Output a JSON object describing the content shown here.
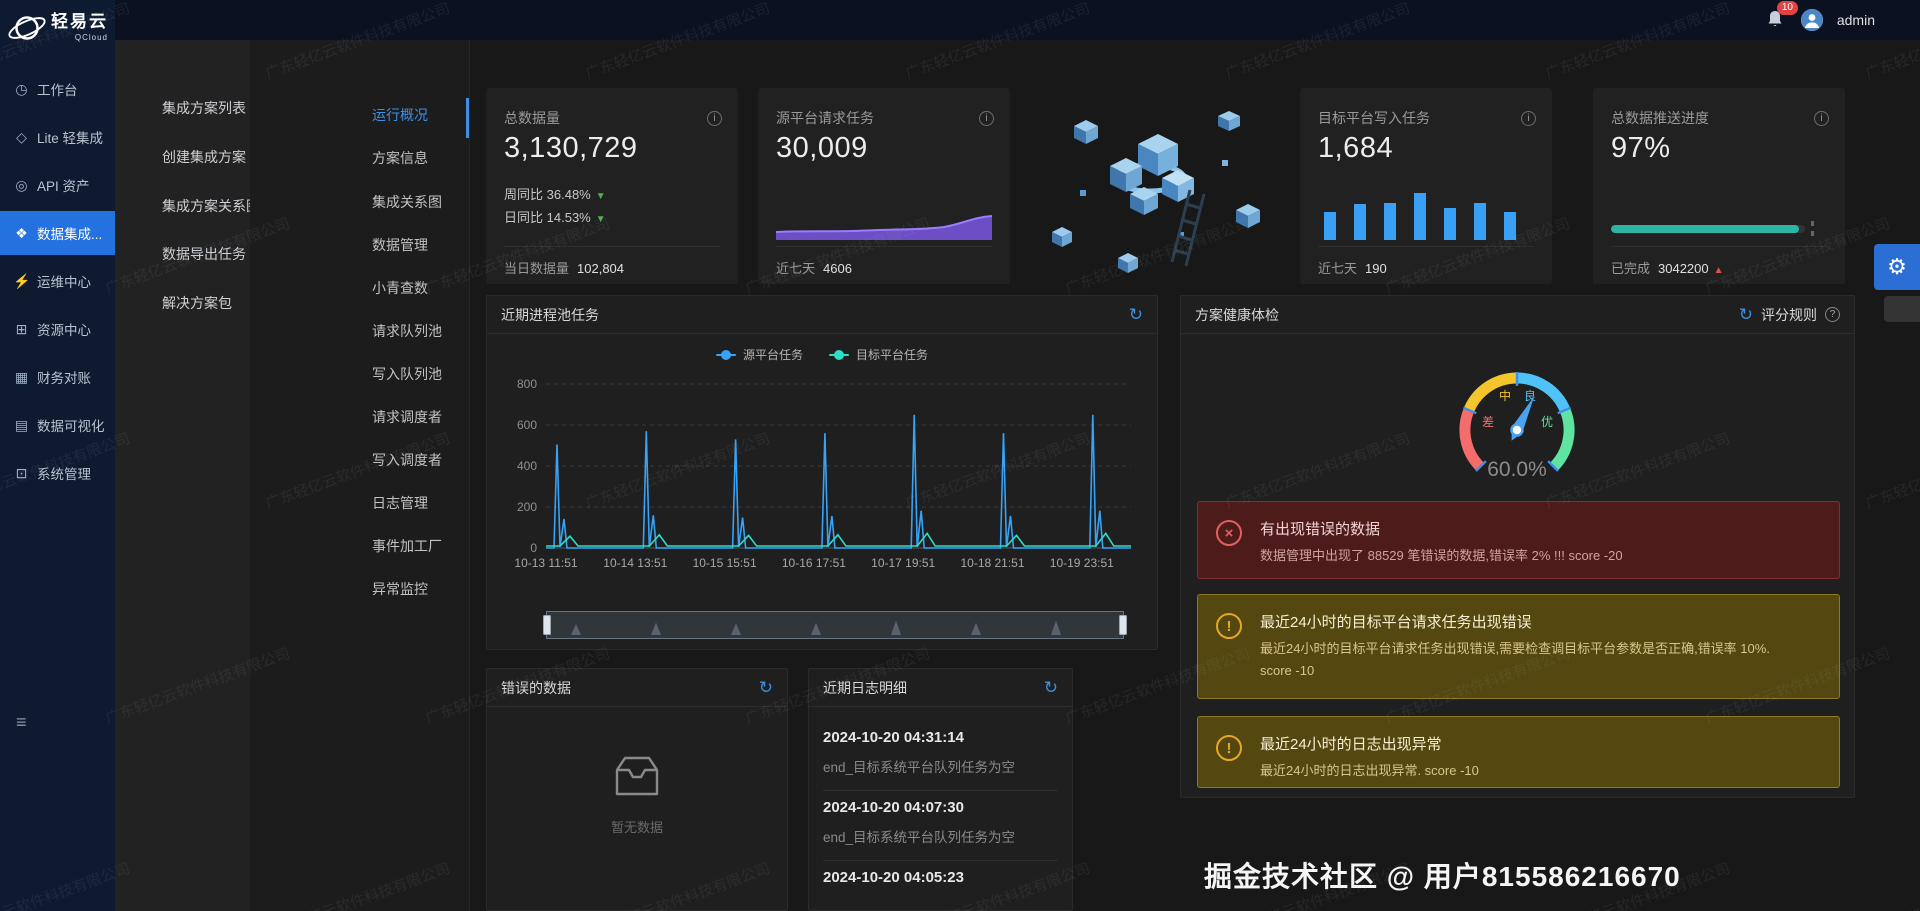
{
  "topbar": {
    "badge_count": "10",
    "username": "admin"
  },
  "logo": {
    "name": "轻易云",
    "subtitle": "QCloud"
  },
  "sidebar": {
    "items": [
      {
        "label": "工作台",
        "icon": "◷"
      },
      {
        "label": "Lite 轻集成",
        "icon": "◇"
      },
      {
        "label": "API 资产",
        "icon": "◎"
      },
      {
        "label": "数据集成...",
        "icon": "❖"
      },
      {
        "label": "运维中心",
        "icon": "⚡"
      },
      {
        "label": "资源中心",
        "icon": "⊞"
      },
      {
        "label": "财务对账",
        "icon": "▦"
      },
      {
        "label": "数据可视化",
        "icon": "▤"
      },
      {
        "label": "系统管理",
        "icon": "⊡"
      }
    ],
    "collapse_icon": "≡"
  },
  "submenu": {
    "items": [
      {
        "label": "集成方案列表"
      },
      {
        "label": "创建集成方案"
      },
      {
        "label": "集成方案关系图"
      },
      {
        "label": "数据导出任务"
      },
      {
        "label": "解决方案包"
      }
    ]
  },
  "tabs": {
    "items": [
      {
        "label": "运行概况"
      },
      {
        "label": "方案信息"
      },
      {
        "label": "集成关系图"
      },
      {
        "label": "数据管理"
      },
      {
        "label": "小青查数"
      },
      {
        "label": "请求队列池"
      },
      {
        "label": "写入队列池"
      },
      {
        "label": "请求调度者"
      },
      {
        "label": "写入调度者"
      },
      {
        "label": "日志管理"
      },
      {
        "label": "事件加工厂"
      },
      {
        "label": "异常监控"
      }
    ]
  },
  "icons": {
    "info": "i",
    "refresh": "↻",
    "question": "?",
    "error": "×",
    "warning": "!",
    "gear": "⚙",
    "tri_down": "▼",
    "tri_up": "▲"
  },
  "stat_cards": [
    {
      "title": "总数据量",
      "value": "3,130,729",
      "trends": [
        {
          "label": "周同比",
          "value": "36.48%"
        },
        {
          "label": "日同比",
          "value": "14.53%"
        }
      ],
      "footer_label": "当日数据量",
      "footer_value": "102,804"
    },
    {
      "title": "源平台请求任务",
      "value": "30,009",
      "footer_label": "近七天",
      "footer_value": "4606"
    },
    {
      "title": "目标平台写入任务",
      "value": "1,684",
      "footer_label": "近七天",
      "footer_value": "190",
      "bars": [
        60,
        77,
        79,
        100,
        68,
        79,
        60
      ]
    },
    {
      "title": "总数据推送进度",
      "value": "97%",
      "progress": 97,
      "footer_label": "已完成",
      "footer_value": "3042200"
    }
  ],
  "process_panel": {
    "title": "近期进程池任务",
    "legend": [
      {
        "label": "源平台任务",
        "color": "#36a3f7"
      },
      {
        "label": "目标平台任务",
        "color": "#2ddec9"
      }
    ]
  },
  "health_panel": {
    "title": "方案健康体检",
    "rules_label": "评分规则",
    "gauge": {
      "value": "60.0%",
      "labels": {
        "poor": "差",
        "mid": "中",
        "good": "良",
        "excellent": "优"
      }
    },
    "alerts": [
      {
        "level": "error",
        "title": "有出现错误的数据",
        "desc": "数据管理中出现了 88529 笔错误的数据,错误率 2% !!! score -20"
      },
      {
        "level": "warning",
        "title": "最近24小时的目标平台请求任务出现错误",
        "desc": "最近24小时的目标平台请求任务出现错误,需要检查调目标平台参数是否正确,错误率 10%.",
        "score": "score -10"
      },
      {
        "level": "warning",
        "title": "最近24小时的日志出现异常",
        "desc": "最近24小时的日志出现异常. score -10"
      }
    ]
  },
  "error_panel": {
    "title": "错误的数据",
    "empty_text": "暂无数据"
  },
  "log_panel": {
    "title": "近期日志明细",
    "entries": [
      {
        "time": "2024-10-20 04:31:14",
        "message": "end_目标系统平台队列任务为空"
      },
      {
        "time": "2024-10-20 04:07:30",
        "message": "end_目标系统平台队列任务为空"
      },
      {
        "time": "2024-10-20 04:05:23",
        "message": ""
      }
    ]
  },
  "watermark": {
    "text": "广东轻亿云软件科技有限公司"
  },
  "credit": "掘金技术社区 @ 用户815586216670",
  "colors": {
    "accent_blue": "#2472e0",
    "chart_blue": "#36a3f7",
    "chart_teal": "#2ddec9",
    "bar_blue": "#3aa0f5",
    "progress_teal": "#2ab5a5",
    "area_purple": "#7553d6",
    "error_red": "#e25f5f",
    "warn_yellow": "#e6a823"
  },
  "chart_data": [
    {
      "type": "line",
      "title": "近期进程池任务",
      "categories": [
        "10-13 11:51",
        "10-14 13:51",
        "10-15 15:51",
        "10-16 17:51",
        "10-17 19:51",
        "10-18 21:51",
        "10-19 23:51"
      ],
      "series": [
        {
          "name": "源平台任务",
          "peaks": [
            505,
            570,
            530,
            560,
            650,
            560,
            650
          ]
        },
        {
          "name": "目标平台任务",
          "peaks": [
            35,
            40,
            38,
            40,
            45,
            38,
            45
          ]
        }
      ],
      "note": "spiky series: baseline 0 between narrow spikes at each time tick",
      "ylim": [
        0,
        800
      ],
      "y_ticks": [
        0,
        200,
        400,
        600,
        800
      ],
      "grid": "dashed horizontal",
      "legend_position": "top-center",
      "datazoom_slider": true
    },
    {
      "type": "gauge",
      "title": "方案健康体检",
      "value": 60.0,
      "unit": "%",
      "segment_labels": [
        "差",
        "中",
        "良",
        "优"
      ],
      "segment_colors": [
        "#f56c6c",
        "#f5c52c",
        "#4fc3f7",
        "#5fe3a1"
      ]
    },
    {
      "type": "bar",
      "title": "目标平台写入任务 近七天",
      "values": [
        60,
        77,
        79,
        100,
        68,
        79,
        60
      ]
    },
    {
      "type": "progress",
      "title": "总数据推送进度",
      "value": 97
    },
    {
      "type": "area",
      "title": "源平台请求任务趋势",
      "values": [
        20,
        21,
        20,
        22,
        21,
        24,
        32
      ]
    }
  ]
}
